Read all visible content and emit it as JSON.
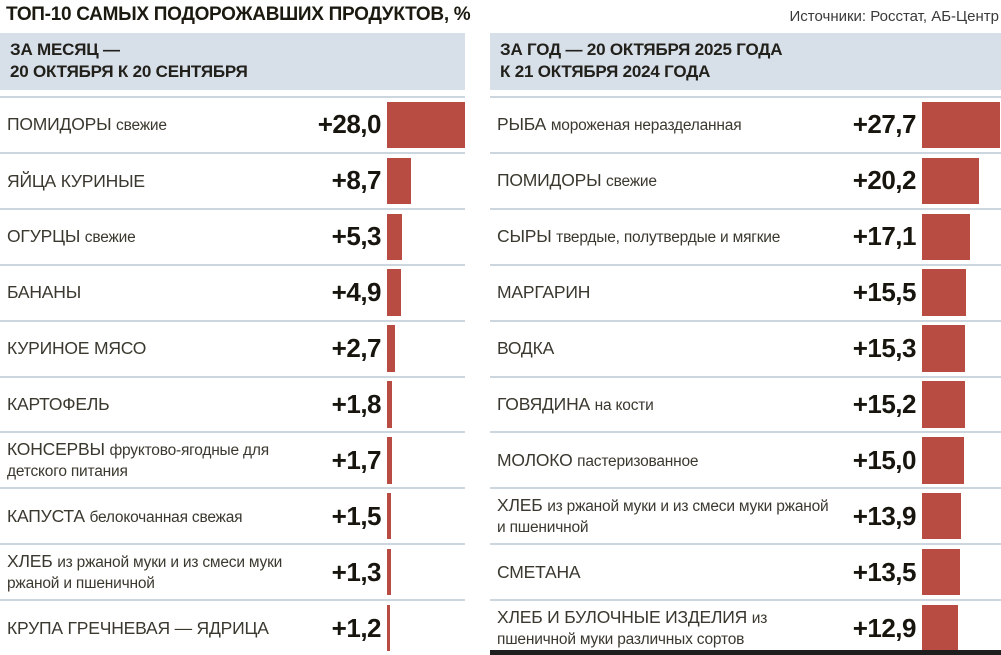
{
  "page": {
    "title": "ТОП-10 САМЫХ ПОДОРОЖАВШИХ ПРОДУКТОВ, %",
    "source": "Источники: Росстат, АБ-Центр"
  },
  "colors": {
    "bar": "#b84c43",
    "header_bg": "#d7dfe9",
    "divider": "#ccd6df",
    "footer_bar": "#1e1e1e"
  },
  "chart_data": [
    {
      "type": "bar",
      "orientation": "horizontal",
      "title": "ЗА МЕСЯЦ — 20 ОКТЯБРЯ К 20 СЕНТЯБРЯ",
      "header_lines": [
        "ЗА МЕСЯЦ —",
        "20 ОКТЯБРЯ К 20 СЕНТЯБРЯ"
      ],
      "xlim": [
        0,
        28
      ],
      "bar_color": "#b84c43",
      "categories": [
        "ПОМИДОРЫ свежие",
        "ЯЙЦА КУРИНЫЕ",
        "ОГУРЦЫ свежие",
        "БАНАНЫ",
        "КУРИНОЕ МЯСО",
        "КАРТОФЕЛЬ",
        "КОНСЕРВЫ фруктово-ягодные для детского питания",
        "КАПУСТА белокочанная свежая",
        "ХЛЕБ из ржаной муки и из смеси муки ржаной и пшеничной",
        "КРУПА ГРЕЧНЕВАЯ — ЯДРИЦА"
      ],
      "values": [
        28.0,
        8.7,
        5.3,
        4.9,
        2.7,
        1.8,
        1.7,
        1.5,
        1.3,
        1.2
      ],
      "items": [
        {
          "name": "ПОМИДОРЫ",
          "desc": "свежие",
          "label": "+28,0",
          "value": 28.0
        },
        {
          "name": "ЯЙЦА КУРИНЫЕ",
          "desc": "",
          "label": "+8,7",
          "value": 8.7
        },
        {
          "name": "ОГУРЦЫ",
          "desc": "свежие",
          "label": "+5,3",
          "value": 5.3
        },
        {
          "name": "БАНАНЫ",
          "desc": "",
          "label": "+4,9",
          "value": 4.9
        },
        {
          "name": "КУРИНОЕ МЯСО",
          "desc": "",
          "label": "+2,7",
          "value": 2.7
        },
        {
          "name": "КАРТОФЕЛЬ",
          "desc": "",
          "label": "+1,8",
          "value": 1.8
        },
        {
          "name": "КОНСЕРВЫ",
          "desc": "фруктово-ягодные для детского питания",
          "label": "+1,7",
          "value": 1.7
        },
        {
          "name": "КАПУСТА",
          "desc": "белокочанная свежая",
          "label": "+1,5",
          "value": 1.5
        },
        {
          "name": "ХЛЕБ",
          "desc": "из ржаной муки и из смеси муки ржаной и пшеничной",
          "label": "+1,3",
          "value": 1.3
        },
        {
          "name": "КРУПА ГРЕЧНЕВАЯ — ЯДРИЦА",
          "desc": "",
          "label": "+1,2",
          "value": 1.2
        }
      ]
    },
    {
      "type": "bar",
      "orientation": "horizontal",
      "title": "ЗА ГОД — 20 ОКТЯБРЯ 2025 ГОДА К 21 ОКТЯБРЯ 2024 ГОДА",
      "header_lines": [
        "ЗА ГОД  — 20 ОКТЯБРЯ 2025 ГОДА",
        "К 21 ОКТЯБРЯ 2024 ГОДА"
      ],
      "xlim": [
        0,
        28
      ],
      "bar_color": "#b84c43",
      "categories": [
        "РЫБА мороженая неразделанная",
        "ПОМИДОРЫ свежие",
        "СЫРЫ твердые, полутвердые и мягкие",
        "МАРГАРИН",
        "ВОДКА",
        "ГОВЯДИНА на кости",
        "МОЛОКО пастеризованное",
        "ХЛЕБ из ржаной муки и из смеси муки ржаной и пшеничной",
        "СМЕТАНА",
        "ХЛЕБ И БУЛОЧНЫЕ ИЗДЕЛИЯ из пшеничной муки различных сортов"
      ],
      "values": [
        27.7,
        20.2,
        17.1,
        15.5,
        15.3,
        15.2,
        15.0,
        13.9,
        13.5,
        12.9
      ],
      "items": [
        {
          "name": "РЫБА",
          "desc": "мороженая неразделанная",
          "label": "+27,7",
          "value": 27.7
        },
        {
          "name": "ПОМИДОРЫ",
          "desc": "свежие",
          "label": "+20,2",
          "value": 20.2
        },
        {
          "name": "СЫРЫ",
          "desc": "твердые, полутвердые и мягкие",
          "label": "+17,1",
          "value": 17.1
        },
        {
          "name": "МАРГАРИН",
          "desc": "",
          "label": "+15,5",
          "value": 15.5
        },
        {
          "name": "ВОДКА",
          "desc": "",
          "label": "+15,3",
          "value": 15.3
        },
        {
          "name": "ГОВЯДИНА",
          "desc": "на кости",
          "label": "+15,2",
          "value": 15.2
        },
        {
          "name": "МОЛОКО",
          "desc": "пастеризованное",
          "label": "+15,0",
          "value": 15.0
        },
        {
          "name": "ХЛЕБ",
          "desc": "из ржаной муки и из смеси муки ржаной и пшеничной",
          "label": "+13,9",
          "value": 13.9
        },
        {
          "name": "СМЕТАНА",
          "desc": "",
          "label": "+13,5",
          "value": 13.5
        },
        {
          "name": "ХЛЕБ И БУЛОЧНЫЕ ИЗДЕЛИЯ",
          "desc": "из пшеничной муки различных сортов",
          "label": "+12,9",
          "value": 12.9
        }
      ]
    }
  ]
}
